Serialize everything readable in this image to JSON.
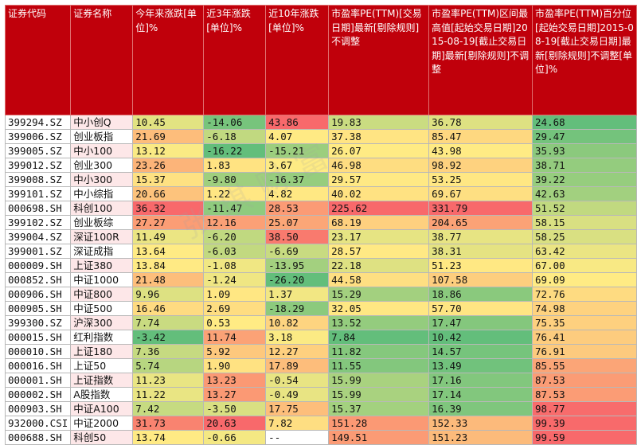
{
  "headers": [
    "证券代码",
    "证券名称",
    "今年来涨跌[单位]%",
    "近3年涨跌[单位]%",
    "近10年涨跌[单位]%",
    "市盈率PE(TTM)[交易日期]最新[剔除规则]不调整",
    "市盈率PE(TTM)区间最高值[起始交易日期]2015-08-19[截止交易日期]最新[剔除规则]不调整",
    "市盈率PE(TTM)百分位[起始交易日期]2015-08-19[截止交易日期]最新[剔除规则]不调整[单位]%"
  ],
  "watermark": "张琪财富",
  "colors": {
    "header_bg": "#c0000b",
    "name_alt_bg": "#fde7e8",
    "heat_low": "#63be7b",
    "heat_mid": "#ffeb84",
    "heat_high": "#f8696b"
  },
  "rows": [
    [
      "399294.SZ",
      "中小创Q",
      "10.45",
      "-14.06",
      "43.86",
      "19.83",
      "36.78",
      "24.68"
    ],
    [
      "399006.SZ",
      "创业板指",
      "21.69",
      "-6.18",
      "4.07",
      "37.38",
      "85.47",
      "29.47"
    ],
    [
      "399005.SZ",
      "中小100",
      "13.12",
      "-16.22",
      "-15.21",
      "26.07",
      "43.98",
      "35.93"
    ],
    [
      "399012.SZ",
      "创业300",
      "23.26",
      "1.83",
      "3.67",
      "46.98",
      "98.92",
      "38.71"
    ],
    [
      "399008.SZ",
      "中小300",
      "15.37",
      "-9.80",
      "-16.37",
      "29.57",
      "53.25",
      "39.22"
    ],
    [
      "399101.SZ",
      "中小综指",
      "20.66",
      "1.22",
      "4.82",
      "40.02",
      "69.67",
      "42.63"
    ],
    [
      "000698.SH",
      "科创100",
      "36.32",
      "-11.47",
      "28.53",
      "225.62",
      "331.79",
      "51.52"
    ],
    [
      "399102.SZ",
      "创业板综",
      "27.27",
      "12.16",
      "25.07",
      "68.19",
      "204.65",
      "58.15"
    ],
    [
      "399004.SZ",
      "深证100R",
      "11.49",
      "-6.20",
      "38.50",
      "23.17",
      "38.77",
      "58.25"
    ],
    [
      "399001.SZ",
      "深证成指",
      "13.64",
      "-6.03",
      "-6.69",
      "28.57",
      "38.31",
      "63.42"
    ],
    [
      "000009.SH",
      "上证380",
      "13.84",
      "-1.08",
      "-13.95",
      "22.18",
      "51.23",
      "67.00"
    ],
    [
      "000852.SH",
      "中证1000",
      "21.48",
      "-1.24",
      "-26.20",
      "44.58",
      "107.58",
      "69.09"
    ],
    [
      "000906.SH",
      "中证800",
      "9.96",
      "1.09",
      "1.37",
      "15.29",
      "18.86",
      "72.76"
    ],
    [
      "000905.SH",
      "中证500",
      "16.46",
      "2.69",
      "-18.29",
      "32.05",
      "57.70",
      "74.98"
    ],
    [
      "399300.SZ",
      "沪深300",
      "7.74",
      "0.53",
      "10.82",
      "13.52",
      "17.47",
      "75.35"
    ],
    [
      "000015.SH",
      "红利指数",
      "-3.42",
      "11.74",
      "3.18",
      "7.84",
      "10.42",
      "76.41"
    ],
    [
      "000010.SH",
      "上证180",
      "7.36",
      "5.92",
      "12.27",
      "11.82",
      "14.57",
      "76.91"
    ],
    [
      "000016.SH",
      "上证50",
      "5.74",
      "1.90",
      "17.89",
      "11.55",
      "13.49",
      "85.55"
    ],
    [
      "000001.SH",
      "上证指数",
      "11.23",
      "13.23",
      "-0.54",
      "15.99",
      "17.16",
      "87.53"
    ],
    [
      "000002.SH",
      "A股指数",
      "11.22",
      "13.27",
      "-0.49",
      "15.99",
      "17.14",
      "87.53"
    ],
    [
      "000903.SH",
      "中证A100",
      "7.42",
      "-3.50",
      "17.75",
      "15.37",
      "16.39",
      "98.77"
    ],
    [
      "932000.CSI",
      "中证2000",
      "31.73",
      "20.63",
      "7.82",
      "151.28",
      "152.33",
      "99.39"
    ],
    [
      "000688.SH",
      "科创50",
      "13.74",
      "-0.66",
      "--",
      "149.51",
      "151.23",
      "99.59"
    ]
  ]
}
